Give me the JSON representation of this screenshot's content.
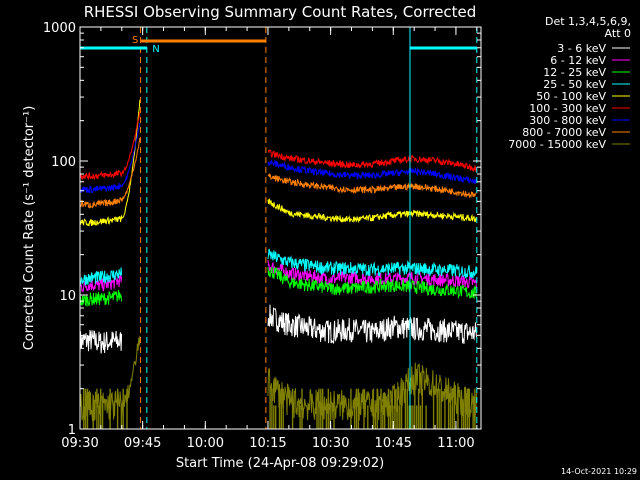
{
  "chart_data": {
    "type": "line",
    "title": "RHESSI Observing Summary Count Rates, Corrected",
    "xlabel": "Start Time (24-Apr-08 09:29:02)",
    "ylabel": "Corrected Count Rate (s⁻¹ detector⁻¹)",
    "ylim": [
      1,
      1000
    ],
    "yscale": "log",
    "xlim_minutes": [
      0,
      96
    ],
    "x_tick_labels": [
      "09:30",
      "09:45",
      "10:00",
      "10:15",
      "10:30",
      "10:45",
      "11:00"
    ],
    "x_tick_minutes": [
      0,
      15,
      30,
      45,
      60,
      75,
      90
    ],
    "y_tick_labels": [
      "1",
      "10",
      "100",
      "1000"
    ],
    "y_tick_values": [
      1,
      10,
      100,
      1000
    ],
    "legend_header": [
      "Det 1,3,4,5,6,9,",
      "Att 0"
    ],
    "legend_placement": "right",
    "footer_date": "14-Oct-2021 10:29",
    "annotations": [
      {
        "text": "S",
        "minute": 13.2,
        "color": "#ff7f00"
      },
      {
        "text": "N",
        "minute": 18.2,
        "color": "#00ffff"
      }
    ],
    "saa_segments": [
      [
        14.5,
        44.5
      ]
    ],
    "night_segments": [
      [
        0,
        16
      ],
      [
        79,
        95
      ]
    ],
    "vertical_markers": [
      {
        "minute": 14.5,
        "color": "#ff7f00",
        "style": "dashed"
      },
      {
        "minute": 16,
        "color": "#00ffff",
        "style": "dashed"
      },
      {
        "minute": 44.5,
        "color": "#ff7f00",
        "style": "dashed"
      },
      {
        "minute": 79,
        "color": "#00ffff",
        "style": "solid"
      },
      {
        "minute": 95,
        "color": "#00ffff",
        "style": "dashed"
      }
    ],
    "series": [
      {
        "name": "3 - 6 keV",
        "color": "#ffffff",
        "pre": [
          4.5,
          4.6,
          4.4,
          4.5,
          4.5
        ],
        "post": [
          7,
          6,
          5.6,
          5.3,
          5.5,
          5.2,
          5.8,
          5.6,
          5.5,
          5.3,
          5.2
        ]
      },
      {
        "name": "6 - 12 keV",
        "color": "#ff00ff",
        "pre": [
          11.5,
          12,
          11.8,
          12.2,
          13
        ],
        "post": [
          16.5,
          14.5,
          13.8,
          13.2,
          13.5,
          13.2,
          13.2,
          13.5,
          13,
          12.8,
          12.2
        ]
      },
      {
        "name": "12 - 25 keV",
        "color": "#00ff00",
        "pre": [
          9,
          9.3,
          9.4,
          9.5,
          10
        ],
        "post": [
          15.5,
          12.5,
          11.8,
          11.2,
          11.2,
          11.5,
          11.8,
          11.5,
          11,
          10.8,
          10.2
        ]
      },
      {
        "name": "25 - 50 keV",
        "color": "#00ffff",
        "pre": [
          13,
          13.4,
          13.5,
          14,
          14.5
        ],
        "post": [
          20,
          17.5,
          16.5,
          15.8,
          15.8,
          15.5,
          15.8,
          15.8,
          15.5,
          15.2,
          14.8
        ]
      },
      {
        "name": "50 - 100 keV",
        "color": "#ffff00",
        "pre": [
          35,
          34.5,
          35.5,
          36,
          37
        ],
        "post": [
          50,
          41,
          39,
          37.5,
          36.5,
          37.5,
          39.5,
          40.5,
          39.5,
          38.5,
          37
        ]
      },
      {
        "name": "100 - 300 keV",
        "color": "#ff0000",
        "pre": [
          78,
          77,
          78,
          79,
          81
        ],
        "post": [
          115,
          105,
          100,
          96,
          93,
          95,
          100,
          104,
          101,
          95,
          88
        ]
      },
      {
        "name": "300 - 800 keV",
        "color": "#0000ff",
        "pre": [
          62,
          61,
          62,
          63,
          66
        ],
        "post": [
          98,
          90,
          84,
          80,
          78,
          78,
          81,
          84,
          80,
          75,
          70
        ]
      },
      {
        "name": "800 - 7000 keV",
        "color": "#ff7f00",
        "pre": [
          48,
          47,
          48,
          49,
          52
        ],
        "post": [
          77,
          70,
          66,
          63,
          61,
          61,
          63,
          65,
          62,
          59,
          55
        ]
      },
      {
        "name": "7000 - 15000 keV",
        "color": "#808000",
        "pre": [
          1.5,
          1.5,
          1.5,
          1.5,
          1.5
        ],
        "post": [
          2.2,
          1.6,
          1.5,
          1.5,
          1.5,
          1.5,
          1.6,
          2.4,
          2.1,
          1.7,
          1.5
        ]
      }
    ],
    "pre_minutes": [
      0,
      2.5,
      5,
      7.5,
      10
    ],
    "rise_end_minute": 14.4,
    "rise_end_values": [
      null,
      null,
      null,
      null,
      290,
      240,
      200,
      150,
      5
    ],
    "post_minutes": [
      45,
      50,
      55,
      60,
      65,
      70,
      75,
      80,
      85,
      90,
      95
    ]
  }
}
